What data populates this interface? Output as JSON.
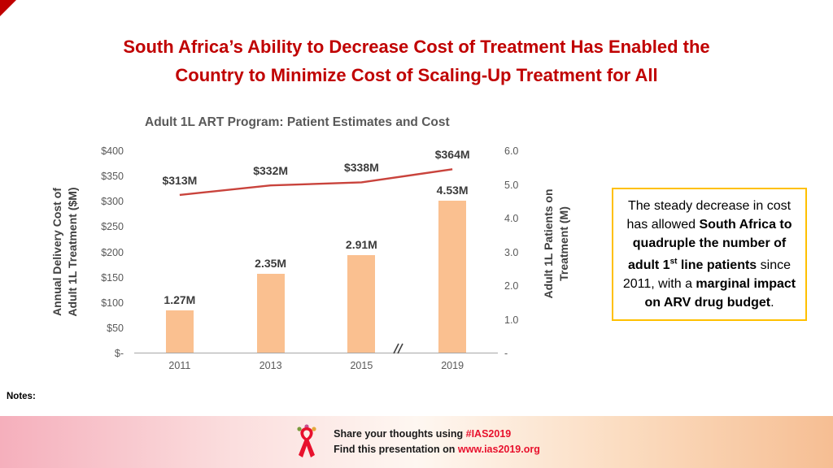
{
  "slide": {
    "title": "South Africa’s Ability to Decrease Cost of Treatment Has Enabled the Country to Minimize Cost of Scaling-Up Treatment for All",
    "title_lines": [
      "South Africa’s Ability to Decrease Cost of Treatment Has Enabled the",
      "Country to Minimize Cost of Scaling-Up Treatment for All"
    ],
    "notes_label": "Notes:"
  },
  "chart_data": {
    "type": "combo-bar-line",
    "title": "Adult 1L ART Program: Patient Estimates and Cost",
    "categories": [
      "2011",
      "2013",
      "2015",
      "2019"
    ],
    "series": [
      {
        "name": "Adult 1L Patients on Treatment (M)",
        "chart": "bar",
        "axis": "right",
        "values": [
          1.27,
          2.35,
          2.91,
          4.53
        ],
        "labels": [
          "1.27M",
          "2.35M",
          "2.91M",
          "4.53M"
        ],
        "color": "#FAC090"
      },
      {
        "name": "Annual Delivery Cost of Adult 1L Treatment ($M)",
        "chart": "line",
        "axis": "left",
        "values": [
          313,
          332,
          338,
          364
        ],
        "labels": [
          "$313M",
          "$332M",
          "$338M",
          "$364M"
        ],
        "color": "#C9433C"
      }
    ],
    "left_axis": {
      "label": "Annual Delivery Cost of Adult 1L Treatment ($M)",
      "label_lines": [
        "Annual Delivery Cost of",
        "Adult 1L  Treatment ($M)"
      ],
      "ticks": [
        "$400",
        "$350",
        "$300",
        "$250",
        "$200",
        "$150",
        "$100",
        "$50",
        "$-"
      ],
      "min": 0,
      "max": 400
    },
    "right_axis": {
      "label": "Adult 1L Patients on Treatment (M)",
      "label_lines": [
        "Adult 1L Patients on",
        "Treatment (M)"
      ],
      "ticks": [
        "6.0",
        "5.0",
        "4.0",
        "3.0",
        "2.0",
        "1.0",
        "-"
      ],
      "min": 0,
      "max": 6
    },
    "x_axis_break_between": [
      "2015",
      "2019"
    ],
    "gridlines": "off",
    "legend": "none"
  },
  "callout": {
    "border_color": "#FFC000",
    "segments": [
      {
        "text": "The steady decrease in cost has allowed ",
        "bold": false
      },
      {
        "text": "South Africa to quadruple the number of adult 1",
        "bold": true
      },
      {
        "text": "st",
        "bold": true,
        "sup": true
      },
      {
        "text": " line patients",
        "bold": true
      },
      {
        "text": " since 2011, with a ",
        "bold": false
      },
      {
        "text": "marginal impact on ARV drug budget",
        "bold": true
      },
      {
        "text": ".",
        "bold": false
      }
    ]
  },
  "footer": {
    "ribbon_icon": "awareness-ribbon",
    "line1_prefix": "Share your thoughts using ",
    "line1_highlight": "#IAS2019",
    "line2_prefix": "Find this presentation on ",
    "line2_highlight": "www.ias2019.org",
    "highlight_color": "#E8112D"
  },
  "colors": {
    "title": "#C00000",
    "bar": "#FAC090",
    "line": "#C9433C",
    "axis_text": "#595959",
    "callout_border": "#FFC000"
  }
}
